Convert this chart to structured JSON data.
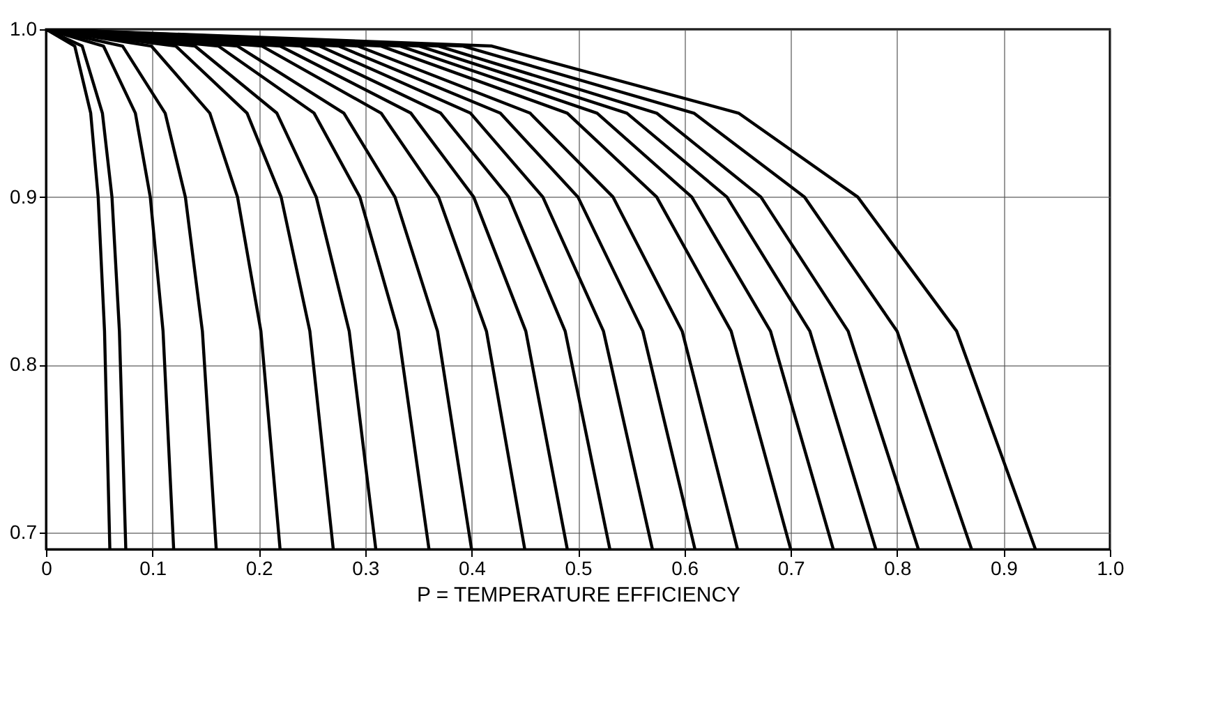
{
  "chart_data": {
    "type": "line",
    "xlabel": "P = TEMPERATURE EFFICIENCY",
    "xlim": [
      0,
      1
    ],
    "ylim": [
      0.69,
      1
    ],
    "xticks": [
      0,
      0.1,
      0.2,
      0.3,
      0.4,
      0.5,
      0.6,
      0.7,
      0.8,
      0.9,
      {
        "value": 1,
        "label": "1.0"
      }
    ],
    "yticks": [
      0.7,
      0.8,
      0.9,
      {
        "value": 1,
        "label": "1.0"
      }
    ],
    "grid": true,
    "legend": false,
    "marker": "none",
    "line_style": "solid",
    "series": [
      {
        "color": "#000000",
        "x": [
          0,
          0.027,
          0.042,
          0.049,
          0.055,
          0.06
        ],
        "values": [
          1,
          0.99,
          0.95,
          0.9,
          0.82,
          0.69
        ]
      },
      {
        "color": "#000000",
        "x": [
          0,
          0.034,
          0.053,
          0.062,
          0.069,
          0.075
        ],
        "values": [
          1,
          0.99,
          0.95,
          0.9,
          0.82,
          0.69
        ]
      },
      {
        "color": "#000000",
        "x": [
          0,
          0.054,
          0.084,
          0.098,
          0.11,
          0.12
        ],
        "values": [
          1,
          0.99,
          0.95,
          0.9,
          0.82,
          0.69
        ]
      },
      {
        "color": "#000000",
        "x": [
          0,
          0.072,
          0.112,
          0.131,
          0.147,
          0.16
        ],
        "values": [
          1,
          0.99,
          0.95,
          0.9,
          0.82,
          0.69
        ]
      },
      {
        "color": "#000000",
        "x": [
          0,
          0.099,
          0.154,
          0.18,
          0.202,
          0.22
        ],
        "values": [
          1,
          0.99,
          0.95,
          0.9,
          0.82,
          0.69
        ]
      },
      {
        "color": "#000000",
        "x": [
          0,
          0.122,
          0.189,
          0.221,
          0.248,
          0.27
        ],
        "values": [
          1,
          0.99,
          0.95,
          0.9,
          0.82,
          0.69
        ]
      },
      {
        "color": "#000000",
        "x": [
          0,
          0.14,
          0.217,
          0.254,
          0.285,
          0.31
        ],
        "values": [
          1,
          0.99,
          0.95,
          0.9,
          0.82,
          0.69
        ]
      },
      {
        "color": "#000000",
        "x": [
          0,
          0.162,
          0.252,
          0.295,
          0.331,
          0.36
        ],
        "values": [
          1,
          0.99,
          0.95,
          0.9,
          0.82,
          0.69
        ]
      },
      {
        "color": "#000000",
        "x": [
          0,
          0.18,
          0.28,
          0.328,
          0.368,
          0.4
        ],
        "values": [
          1,
          0.99,
          0.95,
          0.9,
          0.82,
          0.69
        ]
      },
      {
        "color": "#000000",
        "x": [
          0,
          0.203,
          0.315,
          0.369,
          0.414,
          0.45
        ],
        "values": [
          1,
          0.99,
          0.95,
          0.9,
          0.82,
          0.69
        ]
      },
      {
        "color": "#000000",
        "x": [
          0,
          0.22,
          0.343,
          0.402,
          0.451,
          0.49
        ],
        "values": [
          1,
          0.99,
          0.95,
          0.9,
          0.82,
          0.69
        ]
      },
      {
        "color": "#000000",
        "x": [
          0,
          0.239,
          0.371,
          0.435,
          0.488,
          0.53
        ],
        "values": [
          1,
          0.99,
          0.95,
          0.9,
          0.82,
          0.69
        ]
      },
      {
        "color": "#000000",
        "x": [
          0,
          0.257,
          0.399,
          0.467,
          0.524,
          0.57
        ],
        "values": [
          1,
          0.99,
          0.95,
          0.9,
          0.82,
          0.69
        ]
      },
      {
        "color": "#000000",
        "x": [
          0,
          0.275,
          0.427,
          0.5,
          0.561,
          0.61
        ],
        "values": [
          1,
          0.99,
          0.95,
          0.9,
          0.82,
          0.69
        ]
      },
      {
        "color": "#000000",
        "x": [
          0,
          0.293,
          0.455,
          0.533,
          0.598,
          0.65
        ],
        "values": [
          1,
          0.99,
          0.95,
          0.9,
          0.82,
          0.69
        ]
      },
      {
        "color": "#000000",
        "x": [
          0,
          0.315,
          0.49,
          0.574,
          0.644,
          0.7
        ],
        "values": [
          1,
          0.99,
          0.95,
          0.9,
          0.82,
          0.69
        ]
      },
      {
        "color": "#000000",
        "x": [
          0,
          0.333,
          0.518,
          0.607,
          0.681,
          0.74
        ],
        "values": [
          1,
          0.99,
          0.95,
          0.9,
          0.82,
          0.69
        ]
      },
      {
        "color": "#000000",
        "x": [
          0,
          0.351,
          0.546,
          0.64,
          0.718,
          0.78
        ],
        "values": [
          1,
          0.99,
          0.95,
          0.9,
          0.82,
          0.69
        ]
      },
      {
        "color": "#000000",
        "x": [
          0,
          0.369,
          0.574,
          0.672,
          0.754,
          0.82
        ],
        "values": [
          1,
          0.99,
          0.95,
          0.9,
          0.82,
          0.69
        ]
      },
      {
        "color": "#000000",
        "x": [
          0,
          0.392,
          0.609,
          0.713,
          0.8,
          0.87
        ],
        "values": [
          1,
          0.99,
          0.95,
          0.9,
          0.82,
          0.69
        ]
      },
      {
        "color": "#000000",
        "x": [
          0,
          0.419,
          0.651,
          0.763,
          0.856,
          0.93
        ],
        "values": [
          1,
          0.99,
          0.95,
          0.9,
          0.82,
          0.69
        ]
      }
    ]
  }
}
